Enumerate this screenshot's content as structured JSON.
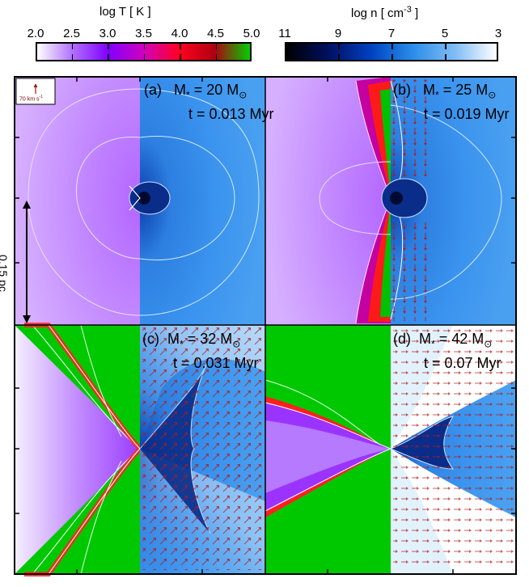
{
  "colorbar_temperature": {
    "label": "log T   [ K ]",
    "ticks": [
      "2.0",
      "2.5",
      "3.0",
      "3.5",
      "4.0",
      "4.5",
      "5.0"
    ],
    "colors": [
      "#ffffff",
      "#b070ff",
      "#7f00ff",
      "#d000c0",
      "#ff0020",
      "#b00010",
      "#00d000"
    ]
  },
  "colorbar_density": {
    "label": "log n   [ cm",
    "label_exp": "-3",
    "label_end": " ]",
    "ticks": [
      "11",
      "9",
      "7",
      "5",
      "3"
    ],
    "colors": [
      "#000000",
      "#001060",
      "#0040c0",
      "#2a8de8",
      "#7fbcf5",
      "#ffffff"
    ]
  },
  "scale_arrow": {
    "label": "70 km s",
    "exp": "-1"
  },
  "scale_bar": {
    "label": "0.15 pc"
  },
  "panels": [
    {
      "id": "a",
      "letter": "(a)",
      "mass_label": "M",
      "mass_sub": "*",
      "mass_value": "=  20 M",
      "sun": "⊙",
      "time": "t = 0.013 Myr"
    },
    {
      "id": "b",
      "letter": "(b)",
      "mass_label": "M",
      "mass_sub": "*",
      "mass_value": "=  25 M",
      "sun": "⊙",
      "time": "t = 0.019 Myr"
    },
    {
      "id": "c",
      "letter": "(c)",
      "mass_label": "M",
      "mass_sub": "*",
      "mass_value": "= 32 M",
      "sun": "⊙",
      "time": "t = 0.031 Myr"
    },
    {
      "id": "d",
      "letter": "(d)",
      "mass_label": "M",
      "mass_sub": "*",
      "mass_value": "= 42 M",
      "sun": "⊙",
      "time": "t = 0.07 Myr"
    }
  ]
}
